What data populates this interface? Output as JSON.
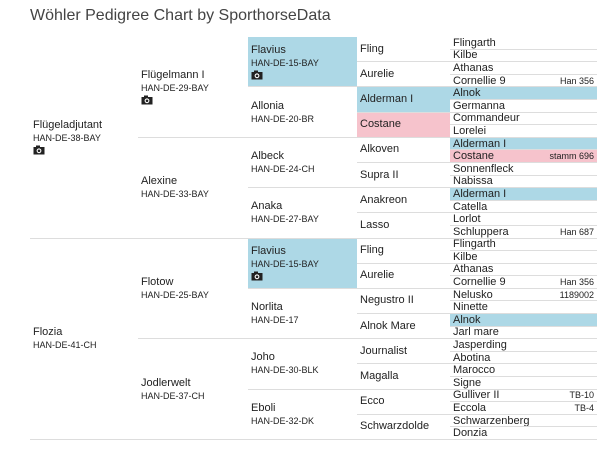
{
  "title": "Wöhler Pedigree Chart by SporthorseData",
  "generations": [
    [
      {
        "name": "Flügeladjutant",
        "reg": "HAN-DE-38-BAY",
        "photo": true
      },
      {
        "name": "Flozia",
        "reg": "HAN-DE-41-CH"
      }
    ],
    [
      {
        "name": "Flügelmann I",
        "reg": "HAN-DE-29-BAY",
        "photo": true
      },
      {
        "name": "Alexine",
        "reg": "HAN-DE-33-BAY"
      },
      {
        "name": "Flotow",
        "reg": "HAN-DE-25-BAY"
      },
      {
        "name": "Jodlerwelt",
        "reg": "HAN-DE-37-CH"
      }
    ],
    [
      {
        "name": "Flavius",
        "reg": "HAN-DE-15-BAY",
        "photo": true,
        "highlight": "#add8e6"
      },
      {
        "name": "Allonia",
        "reg": "HAN-DE-20-BR"
      },
      {
        "name": "Albeck",
        "reg": "HAN-DE-24-CH"
      },
      {
        "name": "Anaka",
        "reg": "HAN-DE-27-BAY"
      },
      {
        "name": "Flavius",
        "reg": "HAN-DE-15-BAY",
        "photo": true,
        "highlight": "#add8e6"
      },
      {
        "name": "Norlita",
        "reg": "HAN-DE-17"
      },
      {
        "name": "Joho",
        "reg": "HAN-DE-30-BLK"
      },
      {
        "name": "Eboli",
        "reg": "HAN-DE-32-DK"
      }
    ],
    [
      {
        "name": "Fling"
      },
      {
        "name": "Aurelie"
      },
      {
        "name": "Alderman I",
        "highlight": "#add8e6"
      },
      {
        "name": "Costane",
        "highlight": "#f6c3cc"
      },
      {
        "name": "Alkoven"
      },
      {
        "name": "Supra II"
      },
      {
        "name": "Anakreon"
      },
      {
        "name": "Lasso"
      },
      {
        "name": "Fling"
      },
      {
        "name": "Aurelie"
      },
      {
        "name": "Negustro II"
      },
      {
        "name": "Alnok Mare"
      },
      {
        "name": "Journalist"
      },
      {
        "name": "Magalla"
      },
      {
        "name": "Ecco"
      },
      {
        "name": "Schwarzdolde"
      }
    ],
    [
      {
        "name": "Flingarth"
      },
      {
        "name": "Kilbe"
      },
      {
        "name": "Athanas"
      },
      {
        "name": "Cornellie 9",
        "note": "Han 356"
      },
      {
        "name": "Alnok",
        "highlight": "#add8e6"
      },
      {
        "name": "Germanna"
      },
      {
        "name": "Commandeur"
      },
      {
        "name": "Lorelei"
      },
      {
        "name": "Alderman I",
        "highlight": "#add8e6"
      },
      {
        "name": "Costane",
        "note": "stamm 696",
        "highlight": "#f6c3cc"
      },
      {
        "name": "Sonnenfleck"
      },
      {
        "name": "Nabissa"
      },
      {
        "name": "Alderman I",
        "highlight": "#add8e6"
      },
      {
        "name": "Catella"
      },
      {
        "name": "Lorlot"
      },
      {
        "name": "Schluppera",
        "note": "Han 687"
      },
      {
        "name": "Flingarth"
      },
      {
        "name": "Kilbe"
      },
      {
        "name": "Athanas"
      },
      {
        "name": "Cornellie 9",
        "note": "Han 356"
      },
      {
        "name": "Nelusko",
        "note": "1189002"
      },
      {
        "name": "Ninette"
      },
      {
        "name": "Alnok",
        "highlight": "#add8e6"
      },
      {
        "name": "Jarl mare"
      },
      {
        "name": "Jasperding"
      },
      {
        "name": "Abotina"
      },
      {
        "name": "Marocco"
      },
      {
        "name": "Signe"
      },
      {
        "name": "Gulliver II",
        "note": "TB-10"
      },
      {
        "name": "Eccola",
        "note": "TB-4"
      },
      {
        "name": "Schwarzenberg"
      },
      {
        "name": "Donzia"
      }
    ]
  ]
}
